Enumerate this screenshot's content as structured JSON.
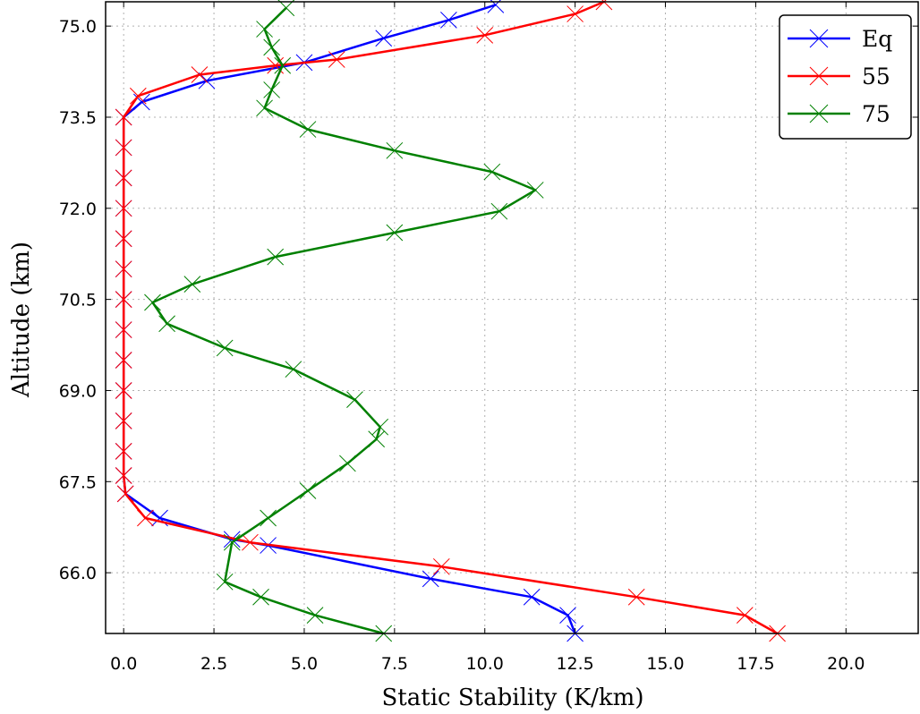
{
  "chart_data": {
    "type": "line",
    "xlabel": "Static Stability (K/km)",
    "ylabel": "Altitude (km)",
    "xlim": [
      -0.5,
      22
    ],
    "ylim": [
      65.0,
      75.4
    ],
    "xticks": [
      0.0,
      2.5,
      5.0,
      7.5,
      10.0,
      12.5,
      15.0,
      17.5,
      20.0
    ],
    "xtick_labels": [
      "0.0",
      "2.5",
      "5.0",
      "7.5",
      "10.0",
      "12.5",
      "15.0",
      "17.5",
      "20.0"
    ],
    "yticks": [
      66.0,
      67.5,
      69.0,
      70.5,
      72.0,
      73.5,
      75.0
    ],
    "ytick_labels": [
      "66.0",
      "67.5",
      "69.0",
      "70.5",
      "72.0",
      "73.5",
      "75.0"
    ],
    "grid": true,
    "legend_position": "top-right",
    "marker": "x",
    "series": [
      {
        "name": "Eq",
        "color": "#0000ff",
        "points": [
          [
            12.5,
            65.0
          ],
          [
            12.3,
            65.3
          ],
          [
            11.3,
            65.6
          ],
          [
            8.5,
            65.9
          ],
          [
            4.0,
            66.45
          ],
          [
            3.0,
            66.55
          ],
          [
            1.0,
            66.9
          ],
          [
            0.05,
            67.3
          ],
          [
            0.0,
            67.6
          ],
          [
            0.0,
            68.0
          ],
          [
            0.0,
            68.5
          ],
          [
            0.0,
            69.0
          ],
          [
            0.0,
            69.5
          ],
          [
            0.0,
            70.0
          ],
          [
            0.0,
            70.5
          ],
          [
            0.0,
            71.0
          ],
          [
            0.0,
            71.5
          ],
          [
            0.0,
            72.0
          ],
          [
            0.0,
            72.5
          ],
          [
            0.0,
            73.0
          ],
          [
            0.0,
            73.5
          ],
          [
            0.5,
            73.75
          ],
          [
            2.3,
            74.1
          ],
          [
            5.0,
            74.4
          ],
          [
            7.2,
            74.8
          ],
          [
            9.0,
            75.1
          ],
          [
            10.3,
            75.35
          ]
        ]
      },
      {
        "name": "55",
        "color": "#ff0000",
        "points": [
          [
            18.1,
            65.0
          ],
          [
            17.2,
            65.3
          ],
          [
            14.2,
            65.6
          ],
          [
            8.8,
            66.1
          ],
          [
            3.5,
            66.5
          ],
          [
            0.6,
            66.9
          ],
          [
            0.05,
            67.3
          ],
          [
            0.0,
            67.6
          ],
          [
            0.0,
            68.0
          ],
          [
            0.0,
            68.5
          ],
          [
            0.0,
            69.0
          ],
          [
            0.0,
            69.5
          ],
          [
            0.0,
            70.0
          ],
          [
            0.0,
            70.5
          ],
          [
            0.0,
            71.0
          ],
          [
            0.0,
            71.5
          ],
          [
            0.0,
            72.0
          ],
          [
            0.0,
            72.5
          ],
          [
            0.0,
            73.0
          ],
          [
            0.0,
            73.5
          ],
          [
            0.4,
            73.85
          ],
          [
            2.1,
            74.2
          ],
          [
            4.2,
            74.35
          ],
          [
            5.9,
            74.45
          ],
          [
            10.0,
            74.85
          ],
          [
            12.5,
            75.2
          ],
          [
            13.3,
            75.4
          ]
        ]
      },
      {
        "name": "75",
        "color": "#008000",
        "points": [
          [
            7.2,
            65.0
          ],
          [
            5.3,
            65.3
          ],
          [
            3.8,
            65.6
          ],
          [
            2.8,
            65.85
          ],
          [
            3.0,
            66.5
          ],
          [
            4.0,
            66.9
          ],
          [
            5.1,
            67.35
          ],
          [
            6.2,
            67.8
          ],
          [
            7.0,
            68.2
          ],
          [
            7.1,
            68.4
          ],
          [
            6.4,
            68.85
          ],
          [
            4.7,
            69.35
          ],
          [
            2.8,
            69.7
          ],
          [
            1.2,
            70.1
          ],
          [
            0.8,
            70.45
          ],
          [
            1.9,
            70.75
          ],
          [
            4.2,
            71.2
          ],
          [
            7.5,
            71.6
          ],
          [
            10.4,
            71.95
          ],
          [
            11.4,
            72.3
          ],
          [
            10.2,
            72.6
          ],
          [
            7.5,
            72.95
          ],
          [
            5.1,
            73.3
          ],
          [
            3.9,
            73.65
          ],
          [
            4.1,
            73.95
          ],
          [
            4.4,
            74.35
          ],
          [
            4.1,
            74.65
          ],
          [
            3.9,
            74.95
          ],
          [
            4.5,
            75.3
          ]
        ]
      }
    ]
  }
}
